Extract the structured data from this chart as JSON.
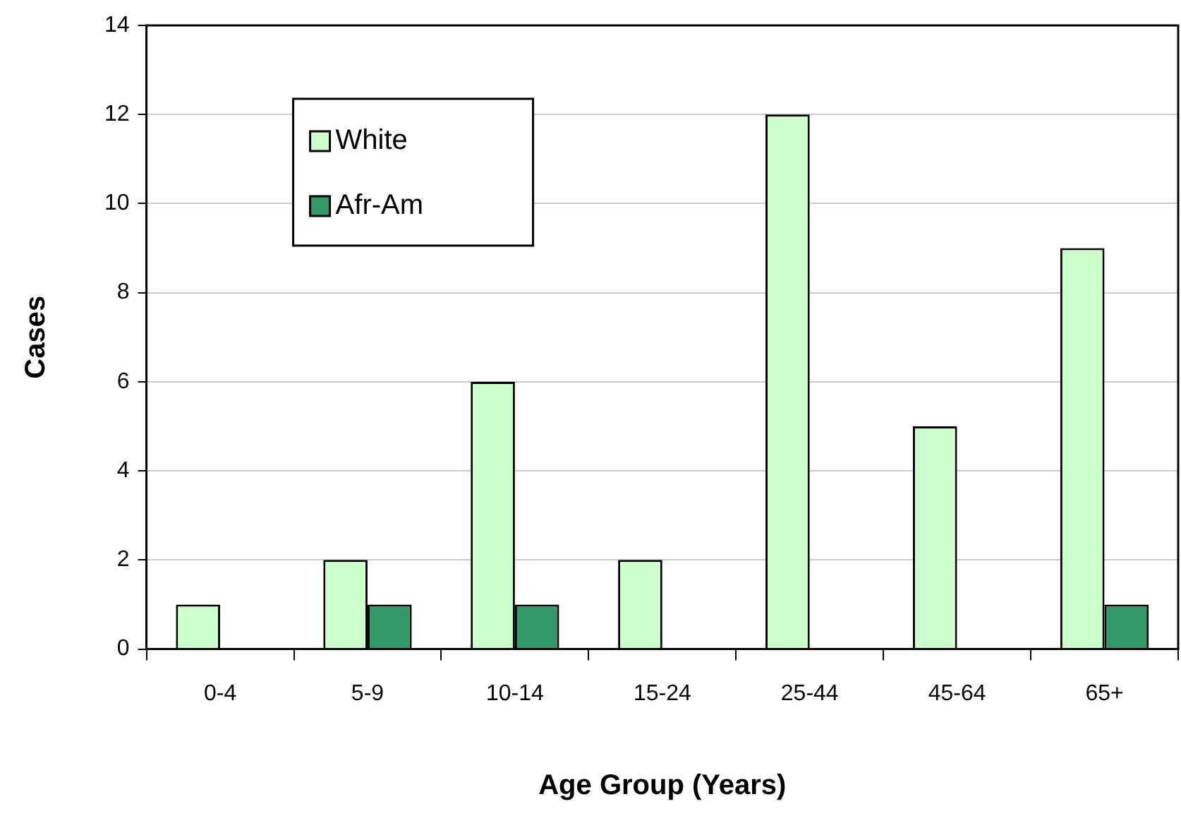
{
  "chart_data": {
    "type": "bar",
    "xlabel": "Age Group (Years)",
    "ylabel": "Cases",
    "categories": [
      "0-4",
      "5-9",
      "10-14",
      "15-24",
      "25-44",
      "45-64",
      "65+"
    ],
    "series": [
      {
        "name": "White",
        "color": "#ccffcc",
        "values": [
          1,
          2,
          6,
          2,
          12,
          5,
          9
        ]
      },
      {
        "name": "Afr-Am",
        "color": "#339966",
        "values": [
          0,
          1,
          1,
          0,
          0,
          0,
          1
        ]
      }
    ],
    "ylim": [
      0,
      14
    ],
    "yticks": [
      0,
      2,
      4,
      6,
      8,
      10,
      12,
      14
    ],
    "grid": "y",
    "legend": "top left"
  }
}
